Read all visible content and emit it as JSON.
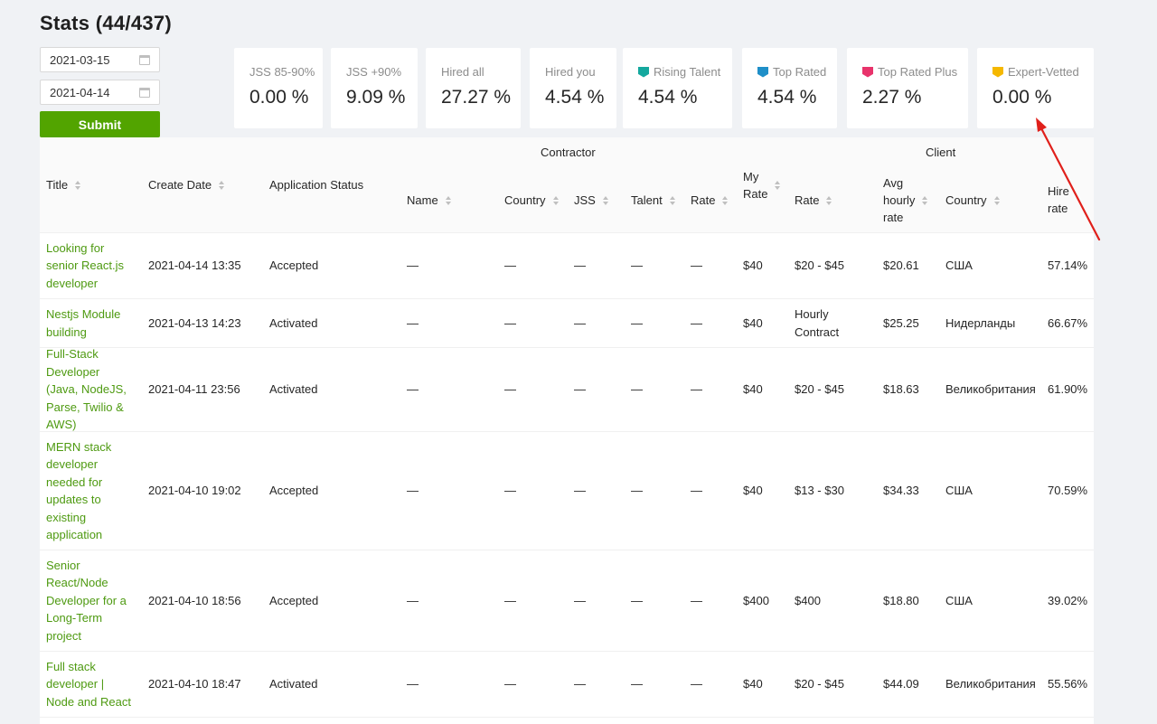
{
  "page_title": "Stats (44/437)",
  "filters": {
    "date_from": "2021-03-15",
    "date_to": "2021-04-14",
    "submit_label": "Submit"
  },
  "stats": [
    {
      "label": "JSS 85-90%",
      "value": "0.00 %",
      "icon": null
    },
    {
      "label": "JSS +90%",
      "value": "9.09 %",
      "icon": null
    },
    {
      "label": "Hired all",
      "value": "27.27 %",
      "icon": null
    },
    {
      "label": "Hired you",
      "value": "4.54 %",
      "icon": null
    },
    {
      "label": "Rising Talent",
      "value": "4.54 %",
      "icon": "rising-talent-badge-icon",
      "color": "#14a89e"
    },
    {
      "label": "Top Rated",
      "value": "4.54 %",
      "icon": "top-rated-badge-icon",
      "color": "#1f8fc8"
    },
    {
      "label": "Top Rated Plus",
      "value": "2.27 %",
      "icon": "top-rated-plus-badge-icon",
      "color": "#e8336b"
    },
    {
      "label": "Expert-Vetted",
      "value": "0.00 %",
      "icon": "expert-vetted-badge-icon",
      "color": "#f5b800"
    }
  ],
  "table": {
    "group_contractor": "Contractor",
    "group_client": "Client",
    "headers": {
      "title": "Title",
      "create_date": "Create Date",
      "application_status": "Application Status",
      "name": "Name",
      "country": "Country",
      "jss": "JSS",
      "talent": "Talent",
      "rate": "Rate",
      "my_rate_1": "My",
      "my_rate_2": "Rate",
      "client_rate": "Rate",
      "avg_1": "Avg",
      "avg_2": "hourly",
      "avg_3": "rate",
      "client_country": "Country",
      "hire_1": "Hire",
      "hire_2": "rate"
    },
    "rows": [
      {
        "title": "Looking for senior React.js developer",
        "date": "2021-04-14 13:35",
        "status": "Accepted",
        "name": "—",
        "country": "—",
        "jss": "—",
        "talent": "—",
        "rate": "—",
        "my_rate": "$40",
        "client_rate": "$20 - $45",
        "avg_rate": "$20.61",
        "client_country": "США",
        "hire_rate": "57.14%"
      },
      {
        "title": "Nestjs Module building",
        "date": "2021-04-13 14:23",
        "status": "Activated",
        "name": "—",
        "country": "—",
        "jss": "—",
        "talent": "—",
        "rate": "—",
        "my_rate": "$40",
        "client_rate": "Hourly Contract",
        "avg_rate": "$25.25",
        "client_country": "Нидерланды",
        "hire_rate": "66.67%"
      },
      {
        "title": "Full-Stack Developer (Java, NodeJS, Parse, Twilio & AWS)",
        "date": "2021-04-11 23:56",
        "status": "Activated",
        "name": "—",
        "country": "—",
        "jss": "—",
        "talent": "—",
        "rate": "—",
        "my_rate": "$40",
        "client_rate": "$20 - $45",
        "avg_rate": "$18.63",
        "client_country": "Великобритания",
        "hire_rate": "61.90%"
      },
      {
        "title": "MERN stack developer needed for updates to existing application",
        "date": "2021-04-10 19:02",
        "status": "Accepted",
        "name": "—",
        "country": "—",
        "jss": "—",
        "talent": "—",
        "rate": "—",
        "my_rate": "$40",
        "client_rate": "$13 - $30",
        "avg_rate": "$34.33",
        "client_country": "США",
        "hire_rate": "70.59%"
      },
      {
        "title": "Senior React/Node Developer for a Long-Term project",
        "date": "2021-04-10 18:56",
        "status": "Accepted",
        "name": "—",
        "country": "—",
        "jss": "—",
        "talent": "—",
        "rate": "—",
        "my_rate": "$400",
        "client_rate": "$400",
        "avg_rate": "$18.80",
        "client_country": "США",
        "hire_rate": "39.02%"
      },
      {
        "title": "Full stack developer | Node and React",
        "date": "2021-04-10 18:47",
        "status": "Activated",
        "name": "—",
        "country": "—",
        "jss": "—",
        "talent": "—",
        "rate": "—",
        "my_rate": "$40",
        "client_rate": "$20 - $45",
        "avg_rate": "$44.09",
        "client_country": "Великобритания",
        "hire_rate": "55.56%"
      }
    ]
  },
  "annotation": {
    "arrow_color": "#e0201b"
  }
}
